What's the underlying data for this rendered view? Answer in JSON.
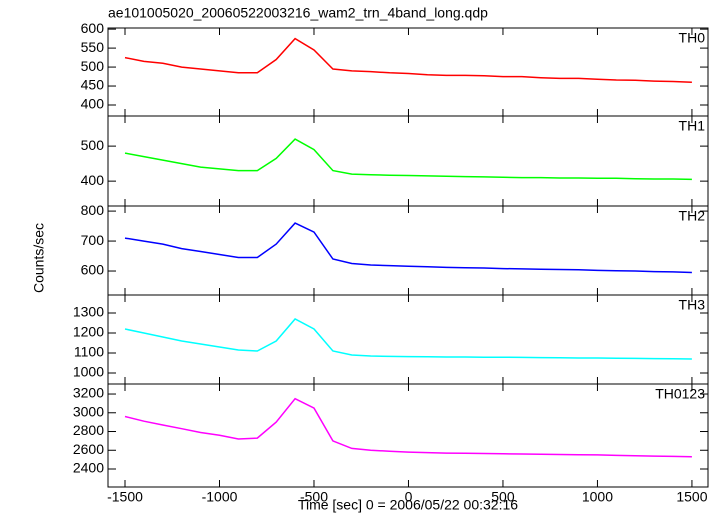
{
  "chart_data": {
    "type": "line",
    "title": "ae101005020_20060522003216_wam2_trn_4band_long.qdp",
    "xlabel": "Time [sec] 0 = 2006/05/22 00:32:16",
    "ylabel": "Counts/sec",
    "xlim": [
      -1590,
      1585
    ],
    "xticks": [
      -1500,
      -1000,
      -500,
      0,
      500,
      1000,
      1500
    ],
    "x": [
      -1500,
      -1400,
      -1300,
      -1200,
      -1100,
      -1000,
      -900,
      -800,
      -700,
      -600,
      -500,
      -400,
      -300,
      -200,
      -100,
      0,
      100,
      200,
      300,
      400,
      500,
      600,
      700,
      800,
      900,
      1000,
      1100,
      1200,
      1300,
      1400,
      1500
    ],
    "panels": [
      {
        "name": "TH0",
        "color": "#ff0000",
        "ylim": [
          371,
          603
        ],
        "yticks": [
          400,
          450,
          500,
          550,
          600
        ],
        "values": [
          525,
          515,
          510,
          500,
          495,
          490,
          485,
          485,
          520,
          575,
          545,
          495,
          490,
          488,
          485,
          483,
          480,
          478,
          478,
          477,
          475,
          475,
          472,
          470,
          470,
          468,
          466,
          465,
          463,
          462,
          460
        ]
      },
      {
        "name": "TH1",
        "color": "#00ff00",
        "ylim": [
          329,
          586
        ],
        "yticks": [
          400,
          500
        ],
        "values": [
          480,
          470,
          460,
          450,
          440,
          435,
          430,
          430,
          465,
          520,
          490,
          430,
          420,
          418,
          417,
          416,
          415,
          414,
          413,
          412,
          411,
          410,
          410,
          409,
          409,
          408,
          408,
          407,
          406,
          406,
          405
        ]
      },
      {
        "name": "TH2",
        "color": "#0000ff",
        "ylim": [
          520,
          817
        ],
        "yticks": [
          600,
          700,
          800
        ],
        "values": [
          710,
          700,
          690,
          675,
          665,
          655,
          645,
          645,
          690,
          760,
          730,
          640,
          625,
          620,
          618,
          616,
          614,
          612,
          611,
          610,
          608,
          607,
          606,
          605,
          604,
          602,
          601,
          600,
          598,
          597,
          595
        ]
      },
      {
        "name": "TH3",
        "color": "#00ffff",
        "ylim": [
          945,
          1390
        ],
        "yticks": [
          1000,
          1100,
          1200,
          1300
        ],
        "values": [
          1220,
          1200,
          1180,
          1160,
          1145,
          1130,
          1115,
          1110,
          1160,
          1270,
          1220,
          1110,
          1090,
          1085,
          1083,
          1082,
          1081,
          1080,
          1080,
          1079,
          1079,
          1078,
          1077,
          1076,
          1075,
          1075,
          1074,
          1073,
          1072,
          1071,
          1070
        ]
      },
      {
        "name": "TH0123",
        "color": "#ff00ff",
        "ylim": [
          2208,
          3307
        ],
        "yticks": [
          2400,
          2600,
          2800,
          3000,
          3200
        ],
        "values": [
          2960,
          2910,
          2870,
          2830,
          2790,
          2760,
          2720,
          2730,
          2900,
          3150,
          3050,
          2700,
          2620,
          2600,
          2590,
          2580,
          2575,
          2570,
          2568,
          2565,
          2562,
          2560,
          2558,
          2555,
          2552,
          2550,
          2545,
          2542,
          2538,
          2535,
          2530
        ]
      }
    ]
  }
}
